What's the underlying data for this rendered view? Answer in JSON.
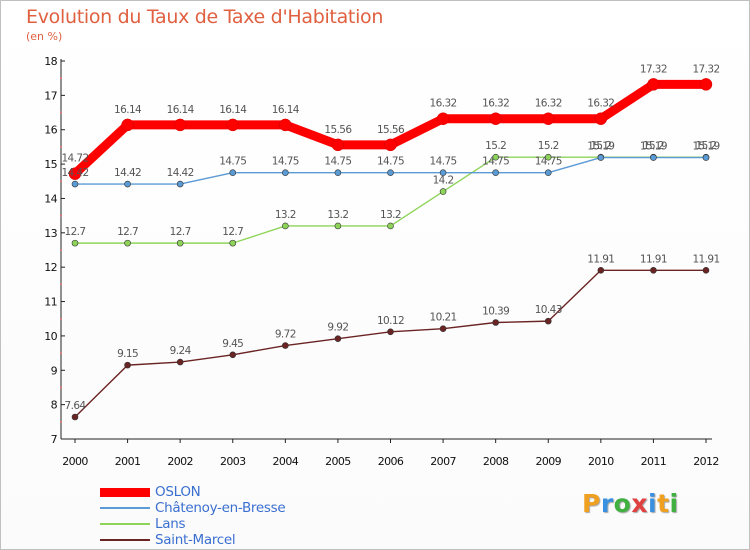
{
  "header": {
    "title": "Evolution du Taux de Taxe d'Habitation",
    "subtitle": "(en %)"
  },
  "logo": {
    "letters": [
      "P",
      "r",
      "o",
      "x",
      "i",
      "t",
      "i"
    ],
    "colors": [
      "#f0a020",
      "#3a90e0",
      "#40b040",
      "#e04040",
      "#3a90e0",
      "#f0a020",
      "#40b040"
    ]
  },
  "colors": {
    "title": "#e06040",
    "axis": "#222222",
    "grid_dot": "#e05050"
  },
  "chart_data": {
    "type": "line",
    "title": "Evolution du Taux de Taxe d'Habitation",
    "subtitle": "(en %)",
    "x": [
      "2000",
      "2001",
      "2002",
      "2003",
      "2004",
      "2005",
      "2006",
      "2007",
      "2008",
      "2009",
      "2010",
      "2011",
      "2012"
    ],
    "ylim": [
      7,
      18
    ],
    "yticks": [
      7,
      8,
      9,
      10,
      11,
      12,
      13,
      14,
      15,
      16,
      17,
      18
    ],
    "legend_position": "bottom-left",
    "series": [
      {
        "name": "OSLON",
        "color": "#ff0000",
        "values": [
          14.72,
          16.14,
          16.14,
          16.14,
          16.14,
          15.56,
          15.56,
          16.32,
          16.32,
          16.32,
          16.32,
          17.32,
          17.32
        ],
        "labels": [
          "14.72",
          "16.14",
          "16.14",
          "16.14",
          "16.14",
          "15.56",
          "15.56",
          "16.32",
          "16.32",
          "16.32",
          "16.32",
          "17.32",
          "17.32"
        ]
      },
      {
        "name": "Châtenoy-en-Bresse",
        "color": "#5b9bd5",
        "values": [
          14.42,
          14.42,
          14.42,
          14.75,
          14.75,
          14.75,
          14.75,
          14.75,
          14.75,
          14.75,
          15.19,
          15.19,
          15.19
        ],
        "labels": [
          "14.42",
          "14.42",
          "14.42",
          "14.75",
          "14.75",
          "14.75",
          "14.75",
          "14.75",
          "14.75",
          "14.75",
          "15.19",
          "15.19",
          "15.19"
        ]
      },
      {
        "name": "Lans",
        "color": "#8ed45a",
        "values": [
          12.7,
          12.7,
          12.7,
          12.7,
          13.2,
          13.2,
          13.2,
          14.2,
          15.2,
          15.2,
          15.2,
          15.2,
          15.2
        ],
        "labels": [
          "12.7",
          "12.7",
          "12.7",
          "12.7",
          "13.2",
          "13.2",
          "13.2",
          "14.2",
          "15.2",
          "15.2",
          "15.2",
          "15.2",
          "15.2"
        ]
      },
      {
        "name": "Saint-Marcel",
        "color": "#6b2424",
        "values": [
          7.64,
          9.15,
          9.24,
          9.45,
          9.72,
          9.92,
          10.12,
          10.21,
          10.39,
          10.43,
          11.91,
          11.91,
          11.91
        ],
        "labels": [
          "7.64",
          "9.15",
          "9.24",
          "9.45",
          "9.72",
          "9.92",
          "10.12",
          "10.21",
          "10.39",
          "10.43",
          "11.91",
          "11.91",
          "11.91"
        ]
      }
    ]
  }
}
